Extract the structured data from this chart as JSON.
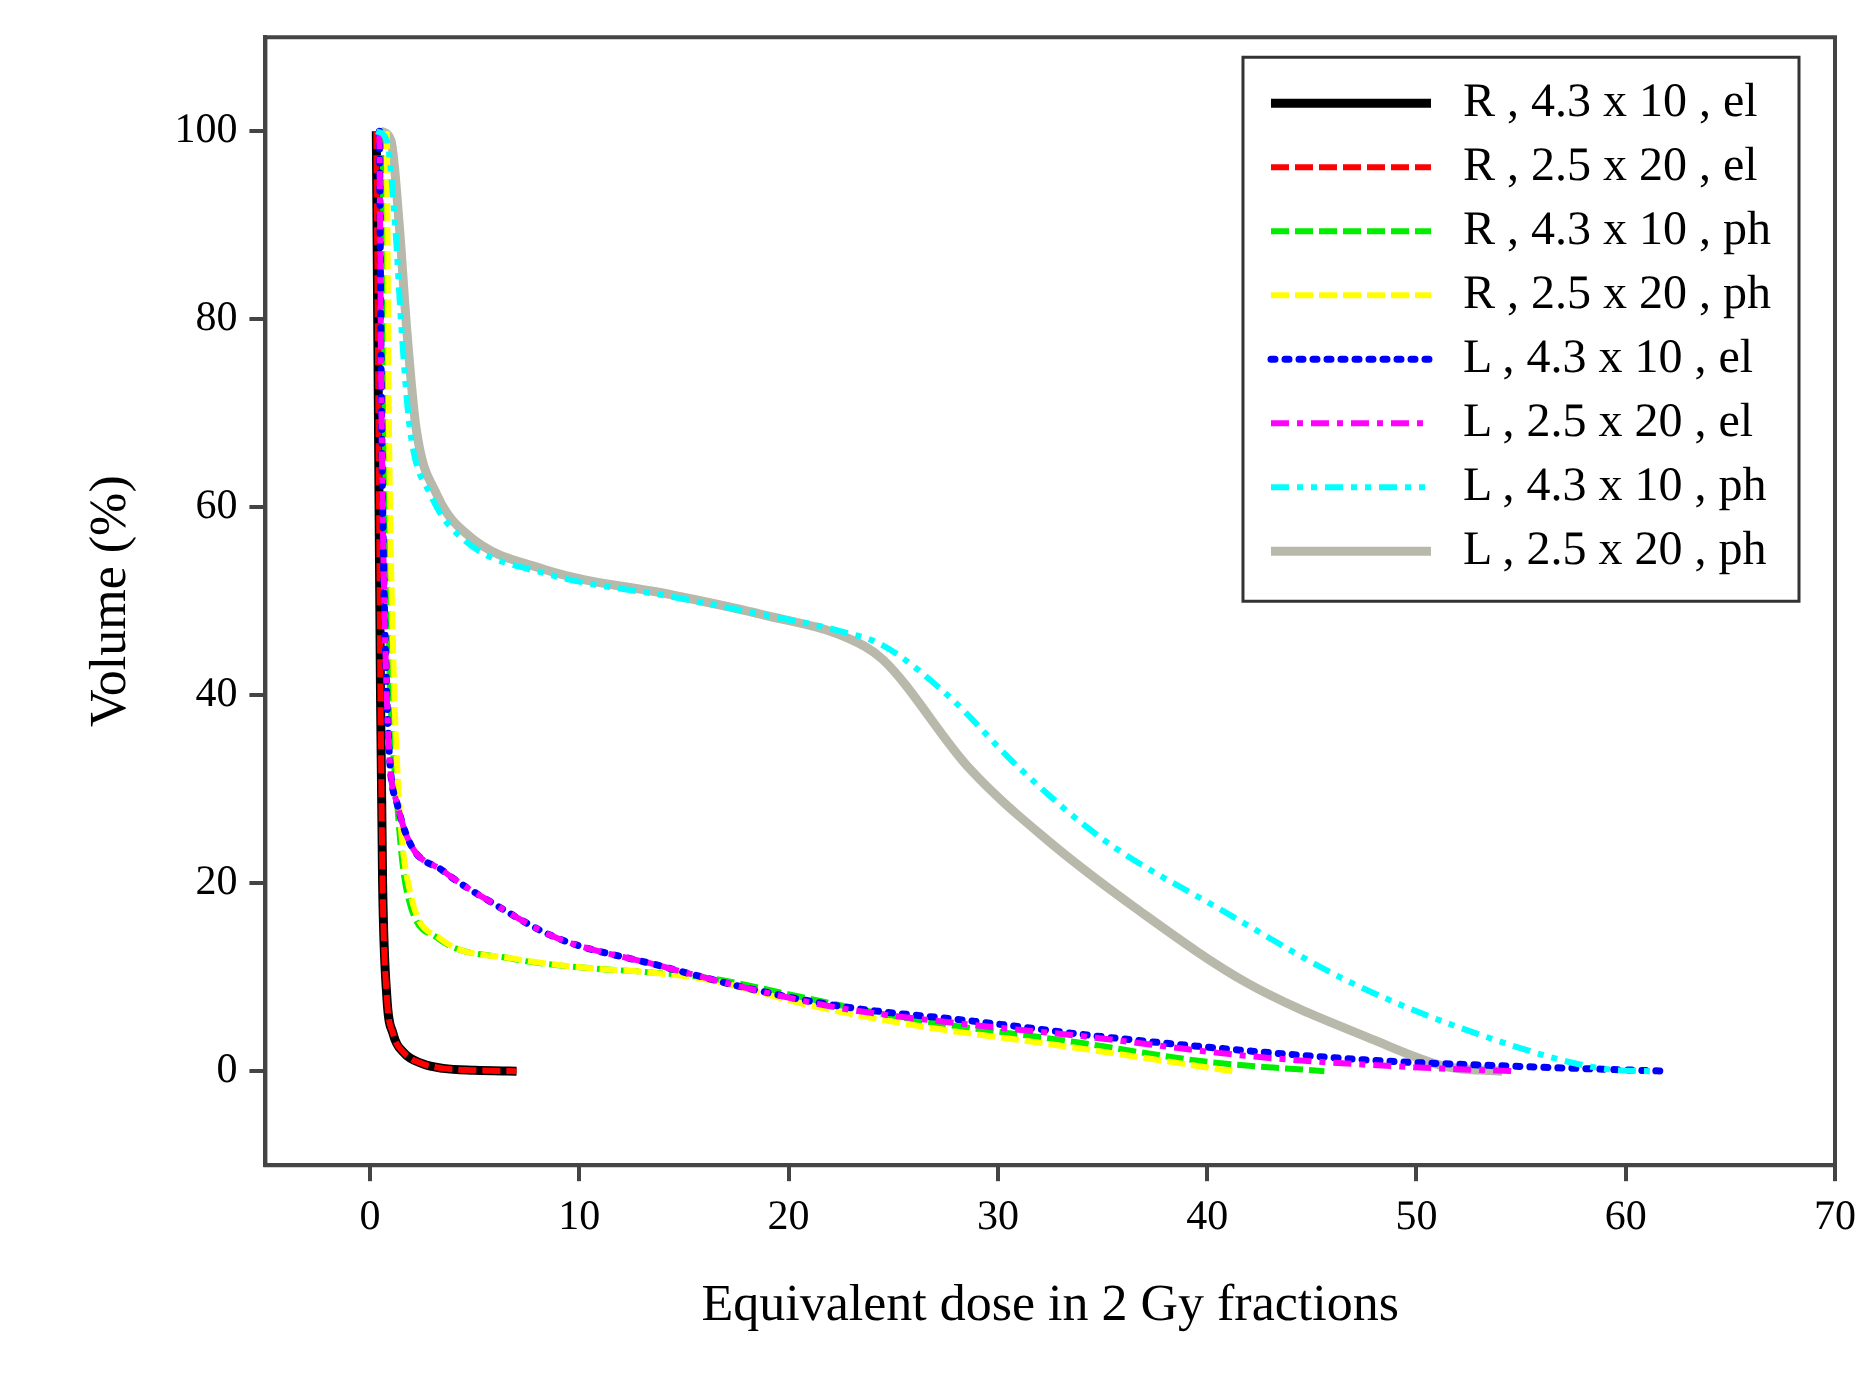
{
  "chart_data": {
    "type": "line",
    "xlabel": "Equivalent dose in 2 Gy fractions",
    "ylabel": "Volume (%)",
    "xlim": [
      -5,
      70
    ],
    "xticks": [
      0,
      10,
      20,
      30,
      40,
      50,
      60,
      70
    ],
    "ylim": [
      -10,
      110
    ],
    "yticks": [
      0,
      20,
      40,
      60,
      80,
      100
    ],
    "grid": false,
    "legend": "top right",
    "marker": "none",
    "series": [
      {
        "name": "R , 4.3 x 10 , el",
        "color": "#000000",
        "line_style": "solid",
        "x": [
          0.3,
          0.4,
          0.5,
          0.6,
          0.8,
          1.1,
          1.6,
          2.5,
          3.5,
          5,
          7
        ],
        "values": [
          100,
          70,
          40,
          20,
          8,
          4,
          2,
          0.8,
          0.3,
          0.1,
          0
        ]
      },
      {
        "name": "R , 2.5 x 20 , el",
        "color": "#ff0000",
        "line_style": "dashed",
        "x": [
          0.3,
          0.4,
          0.5,
          0.6,
          0.8,
          1.1,
          1.6,
          2.5,
          3.5,
          5,
          7
        ],
        "values": [
          100,
          70,
          40,
          20,
          8,
          4,
          2,
          0.8,
          0.3,
          0.1,
          0
        ]
      },
      {
        "name": "R , 4.3 x 10 , ph",
        "color": "#00ee00",
        "line_style": "dashed",
        "x": [
          0.6,
          0.7,
          0.9,
          1.3,
          1.75,
          3.2,
          6.7,
          10.8,
          12.9,
          16.2,
          21,
          25.7,
          33.7,
          40,
          45.6
        ],
        "values": [
          100,
          70,
          45,
          28.4,
          19.2,
          14.2,
          12,
          10.9,
          10.6,
          9.9,
          7.7,
          5.6,
          3.1,
          1,
          0
        ]
      },
      {
        "name": "R , 2.5 x 20 , ph",
        "color": "#ffff00",
        "line_style": "dashed",
        "x": [
          0.8,
          0.9,
          1.1,
          1.4,
          1.9,
          3.3,
          6.8,
          10.8,
          12.9,
          16.2,
          21,
          25.7,
          33.7,
          41.2
        ],
        "values": [
          100,
          70,
          45,
          28.4,
          19.2,
          14.2,
          12,
          10.9,
          10.6,
          9.7,
          7,
          5,
          2.5,
          0
        ]
      },
      {
        "name": "L , 4.3 x 10 , el",
        "color": "#0000ff",
        "line_style": "dotted",
        "x": [
          0.45,
          0.55,
          0.8,
          1.3,
          3.5,
          6,
          8.9,
          13.7,
          18.1,
          22.5,
          28.9,
          35.7,
          47.6,
          55,
          62
        ],
        "values": [
          100,
          70,
          40,
          28.4,
          21.3,
          17.7,
          14.2,
          11.3,
          8.8,
          6.9,
          5.3,
          3.5,
          1.2,
          0.5,
          0
        ]
      },
      {
        "name": "L , 2.5 x 20 , el",
        "color": "#ff00ff",
        "line_style": "dashdot",
        "x": [
          0.45,
          0.55,
          0.8,
          1.3,
          3.5,
          6,
          8.9,
          13.7,
          18.1,
          22.5,
          28.9,
          33.7,
          42.5,
          51,
          54.8
        ],
        "values": [
          100,
          70,
          40,
          28.4,
          21.3,
          17.7,
          14.2,
          11.3,
          8.8,
          6.7,
          4.9,
          3.8,
          1.5,
          0.3,
          0
        ]
      },
      {
        "name": "L , 4.3 x 10 , ph",
        "color": "#00ffff",
        "line_style": "dashdotdot",
        "x": [
          0.3,
          0.8,
          1.2,
          1.5,
          1.9,
          2.9,
          4.5,
          8.3,
          14.6,
          18.7,
          22.5,
          24.5,
          27.6,
          31,
          35,
          40.8,
          46.9,
          53.8,
          58.8,
          61.2
        ],
        "values": [
          100,
          99,
          90,
          79,
          68.4,
          61.3,
          56.5,
          53,
          50.4,
          48.6,
          46.8,
          45.3,
          40,
          32.3,
          24.7,
          17,
          9.4,
          3.3,
          0.3,
          0
        ]
      },
      {
        "name": "L , 2.5 x 20 , ph",
        "color": "#b8b8ab",
        "line_style": "solid",
        "x": [
          0.5,
          1,
          1.4,
          1.75,
          2.2,
          3.2,
          4.7,
          8.3,
          14.6,
          18.7,
          22.8,
          24.5,
          28.6,
          32.3,
          36.8,
          41.9,
          48,
          51.4,
          54.1
        ],
        "values": [
          100,
          99,
          89.9,
          79,
          68.4,
          61.3,
          57,
          53.4,
          50.6,
          48.6,
          46.1,
          43.8,
          32.3,
          24.7,
          17,
          9.4,
          3.3,
          0.5,
          0
        ]
      }
    ]
  }
}
